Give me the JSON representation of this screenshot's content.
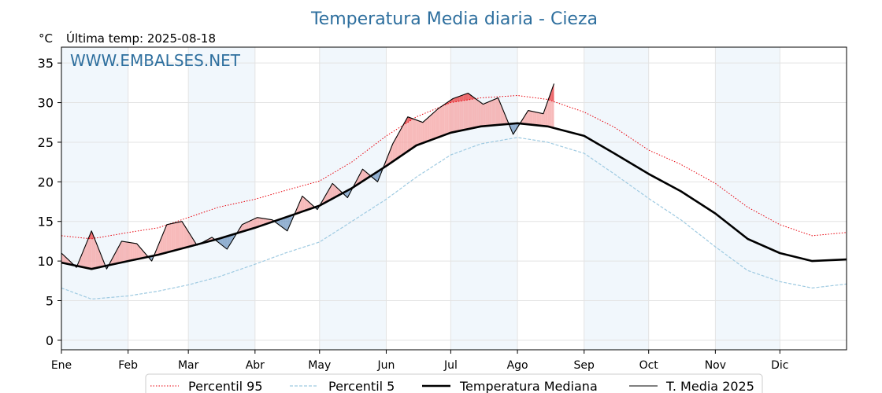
{
  "chart_data": {
    "type": "line",
    "title": "Temperatura Media diaria - Cieza",
    "unit_label": "°C",
    "last_temp_label": "Última temp: 2025-08-18",
    "watermark": "WWW.EMBALSES.NET",
    "ylim": [
      -1.2,
      37
    ],
    "yticks": [
      0,
      5,
      10,
      15,
      20,
      25,
      30,
      35
    ],
    "month_labels": [
      "Ene",
      "Feb",
      "Mar",
      "Abr",
      "May",
      "Jun",
      "Jul",
      "Ago",
      "Sep",
      "Oct",
      "Nov",
      "Dic"
    ],
    "month_start_days": [
      1,
      32,
      60,
      91,
      121,
      152,
      182,
      213,
      244,
      274,
      305,
      335
    ],
    "x_range_days": [
      1,
      366
    ],
    "grid": true,
    "legend_placement": "bottom-center",
    "series": [
      {
        "name": "Percentil 95",
        "style": "dotted",
        "color": "#e8000b",
        "x": [
          1,
          15,
          32,
          46,
          60,
          74,
          91,
          105,
          121,
          136,
          152,
          166,
          182,
          196,
          213,
          227,
          244,
          258,
          274,
          289,
          305,
          320,
          335,
          350,
          366
        ],
        "values": [
          13.2,
          12.8,
          13.6,
          14.2,
          15.5,
          16.8,
          17.8,
          18.9,
          20.1,
          22.5,
          25.8,
          28.2,
          30.0,
          30.6,
          30.9,
          30.4,
          28.8,
          26.9,
          24.0,
          22.2,
          19.8,
          16.8,
          14.6,
          13.2,
          13.6
        ]
      },
      {
        "name": "Percentil 5",
        "style": "dashed",
        "color": "#9ecae1",
        "x": [
          1,
          15,
          32,
          46,
          60,
          74,
          91,
          105,
          121,
          136,
          152,
          166,
          182,
          196,
          213,
          227,
          244,
          258,
          274,
          289,
          305,
          320,
          335,
          350,
          366
        ],
        "values": [
          6.6,
          5.2,
          5.6,
          6.2,
          7.0,
          8.0,
          9.6,
          11.0,
          12.4,
          15.0,
          17.8,
          20.6,
          23.4,
          24.8,
          25.6,
          25.0,
          23.6,
          21.0,
          17.9,
          15.2,
          11.8,
          8.8,
          7.4,
          6.6,
          7.1
        ]
      },
      {
        "name": "Temperatura Mediana",
        "style": "solid-thick",
        "color": "#000000",
        "x": [
          1,
          15,
          32,
          46,
          60,
          74,
          91,
          105,
          121,
          136,
          152,
          166,
          182,
          196,
          213,
          227,
          244,
          258,
          274,
          289,
          305,
          320,
          335,
          350,
          366
        ],
        "values": [
          9.8,
          9.0,
          10.0,
          10.8,
          11.8,
          12.8,
          14.2,
          15.5,
          17.0,
          19.2,
          22.0,
          24.6,
          26.2,
          27.0,
          27.4,
          27.0,
          25.8,
          23.6,
          21.0,
          18.8,
          16.0,
          12.8,
          11.0,
          10.0,
          10.2
        ]
      },
      {
        "name": "T. Media 2025",
        "style": "solid-thin",
        "color": "#000000",
        "x": [
          1,
          8,
          15,
          22,
          29,
          36,
          43,
          50,
          57,
          64,
          71,
          78,
          85,
          92,
          99,
          106,
          113,
          120,
          127,
          134,
          141,
          148,
          155,
          162,
          169,
          176,
          183,
          190,
          197,
          204,
          211,
          218,
          225,
          230
        ],
        "values": [
          11.0,
          9.2,
          13.8,
          9.0,
          12.5,
          12.2,
          10.0,
          14.6,
          15.0,
          12.0,
          13.0,
          11.5,
          14.6,
          15.5,
          15.2,
          13.8,
          18.2,
          16.5,
          19.8,
          18.0,
          21.6,
          20.0,
          24.8,
          28.2,
          27.5,
          29.2,
          30.5,
          31.2,
          29.8,
          30.6,
          26.0,
          29.0,
          28.6,
          32.4
        ]
      }
    ]
  },
  "legend": {
    "items": [
      "Percentil 95",
      "Percentil 5",
      "Temperatura Mediana",
      "T. Media 2025"
    ]
  }
}
